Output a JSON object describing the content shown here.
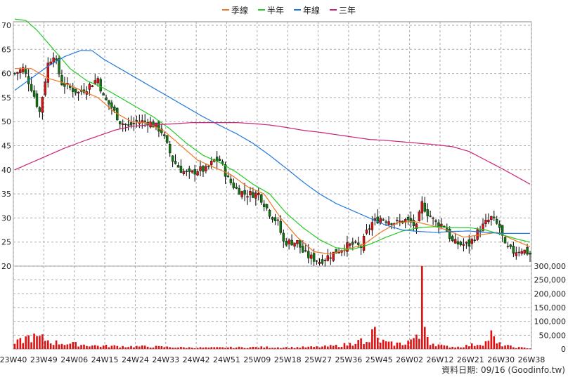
{
  "chart_data": {
    "type": "candlestick",
    "legend": {
      "placement": "top-center",
      "items": [
        {
          "name": "季線",
          "color": "#ee7722"
        },
        {
          "name": "半年",
          "color": "#22cc22"
        },
        {
          "name": "年線",
          "color": "#2277dd"
        },
        {
          "name": "三年",
          "color": "#cc2277"
        }
      ]
    },
    "colors": {
      "up": "#dd1111",
      "down": "#117711",
      "volume": "#dd1111",
      "grid": "#aaaaaa"
    },
    "price_axis": {
      "min": 20,
      "max": 70,
      "ticks": [
        20,
        25,
        30,
        35,
        40,
        45,
        50,
        55,
        60,
        65,
        70
      ]
    },
    "volume_axis": {
      "min": 0,
      "max": 300000,
      "ticks": [
        0,
        50000,
        100000,
        150000,
        200000,
        250000,
        300000
      ],
      "tick_labels": [
        "0",
        "50,000",
        "100,000",
        "150,000",
        "200,000",
        "250,000",
        "300,000"
      ]
    },
    "x_tick_labels": [
      "23W40",
      "23W49",
      "24W06",
      "24W15",
      "24W24",
      "24W33",
      "24W42",
      "24W51",
      "25W09",
      "25W18",
      "25W27",
      "25W36",
      "25W45",
      "26W02",
      "26W12",
      "26W21",
      "26W30",
      "26W38"
    ],
    "grid": true,
    "footer": "資料日期: 09/16  (Goodinfo.tw)",
    "close_keypoints": [
      [
        0,
        60
      ],
      [
        3,
        61
      ],
      [
        6,
        57
      ],
      [
        9,
        52
      ],
      [
        12,
        62
      ],
      [
        14,
        64
      ],
      [
        17,
        58
      ],
      [
        20,
        57
      ],
      [
        23,
        56
      ],
      [
        26,
        57
      ],
      [
        28,
        58
      ],
      [
        30,
        59
      ],
      [
        32,
        55
      ],
      [
        35,
        53
      ],
      [
        38,
        50
      ],
      [
        41,
        49
      ],
      [
        44,
        50
      ],
      [
        48,
        50
      ],
      [
        51,
        49
      ],
      [
        53,
        48
      ],
      [
        55,
        45
      ],
      [
        57,
        42
      ],
      [
        60,
        40
      ],
      [
        63,
        39
      ],
      [
        66,
        40
      ],
      [
        69,
        40
      ],
      [
        72,
        42
      ],
      [
        74,
        42
      ],
      [
        77,
        38
      ],
      [
        80,
        36
      ],
      [
        83,
        35
      ],
      [
        86,
        35
      ],
      [
        88,
        35
      ],
      [
        90,
        33
      ],
      [
        92,
        31
      ],
      [
        95,
        29
      ],
      [
        97,
        25
      ],
      [
        99,
        25
      ],
      [
        102,
        25
      ],
      [
        104,
        23
      ],
      [
        106,
        22
      ],
      [
        110,
        21
      ],
      [
        113,
        22
      ],
      [
        116,
        23
      ],
      [
        119,
        24
      ],
      [
        122,
        24.5
      ],
      [
        125,
        24
      ],
      [
        127,
        27
      ],
      [
        129,
        29
      ],
      [
        132,
        30
      ],
      [
        135,
        29.5
      ],
      [
        138,
        29
      ],
      [
        141,
        29.5
      ],
      [
        143,
        29
      ],
      [
        145,
        28
      ],
      [
        147,
        33
      ],
      [
        149,
        31
      ],
      [
        152,
        29
      ],
      [
        155,
        28.5
      ],
      [
        158,
        25
      ],
      [
        161,
        24.5
      ],
      [
        164,
        24.5
      ],
      [
        167,
        27
      ],
      [
        170,
        29
      ],
      [
        172,
        30
      ],
      [
        175,
        28
      ],
      [
        177,
        24
      ],
      [
        180,
        23
      ],
      [
        183,
        23.5
      ],
      [
        186,
        22.5
      ]
    ],
    "volume_keypoints": [
      [
        0,
        20000
      ],
      [
        5,
        45000
      ],
      [
        10,
        40000
      ],
      [
        14,
        25000
      ],
      [
        20,
        20000
      ],
      [
        30,
        12000
      ],
      [
        40,
        10000
      ],
      [
        50,
        9000
      ],
      [
        60,
        6000
      ],
      [
        70,
        5000
      ],
      [
        80,
        6000
      ],
      [
        90,
        7000
      ],
      [
        100,
        6000
      ],
      [
        110,
        8000
      ],
      [
        116,
        12000
      ],
      [
        122,
        20000
      ],
      [
        124,
        50000
      ],
      [
        126,
        15000
      ],
      [
        128,
        30000
      ],
      [
        130,
        80000
      ],
      [
        131,
        35000
      ],
      [
        135,
        20000
      ],
      [
        140,
        20000
      ],
      [
        144,
        40000
      ],
      [
        146,
        40000
      ],
      [
        147,
        300000
      ],
      [
        148,
        80000
      ],
      [
        150,
        25000
      ],
      [
        155,
        10000
      ],
      [
        160,
        8000
      ],
      [
        165,
        15000
      ],
      [
        170,
        25000
      ],
      [
        172,
        55000
      ],
      [
        174,
        20000
      ],
      [
        180,
        7000
      ],
      [
        186,
        3000
      ]
    ],
    "ma_keypoints": {
      "季線": [
        [
          0,
          61
        ],
        [
          6,
          61
        ],
        [
          12,
          59
        ],
        [
          18,
          58
        ],
        [
          24,
          56.5
        ],
        [
          30,
          55
        ],
        [
          36,
          52
        ],
        [
          42,
          50
        ],
        [
          48,
          49.7
        ],
        [
          54,
          48
        ],
        [
          60,
          45
        ],
        [
          66,
          42
        ],
        [
          72,
          40.5
        ],
        [
          78,
          39
        ],
        [
          84,
          36.5
        ],
        [
          90,
          35
        ],
        [
          96,
          30
        ],
        [
          102,
          26
        ],
        [
          108,
          23
        ],
        [
          114,
          22.5
        ],
        [
          120,
          23.5
        ],
        [
          126,
          24.5
        ],
        [
          132,
          27
        ],
        [
          138,
          29
        ],
        [
          144,
          29.3
        ],
        [
          150,
          28.5
        ],
        [
          156,
          27.5
        ],
        [
          162,
          26
        ],
        [
          168,
          26.5
        ],
        [
          174,
          27
        ],
        [
          180,
          25.5
        ],
        [
          186,
          24
        ]
      ],
      "半年": [
        [
          0,
          71.3
        ],
        [
          4,
          71
        ],
        [
          8,
          69
        ],
        [
          14,
          65
        ],
        [
          20,
          61
        ],
        [
          26,
          58.5
        ],
        [
          32,
          57
        ],
        [
          38,
          55
        ],
        [
          44,
          53
        ],
        [
          50,
          51
        ],
        [
          56,
          48.5
        ],
        [
          62,
          45.5
        ],
        [
          68,
          43
        ],
        [
          74,
          41.5
        ],
        [
          80,
          39.5
        ],
        [
          86,
          37
        ],
        [
          92,
          35
        ],
        [
          98,
          31
        ],
        [
          104,
          28
        ],
        [
          110,
          25.5
        ],
        [
          116,
          23.8
        ],
        [
          122,
          23.5
        ],
        [
          128,
          24.5
        ],
        [
          134,
          26
        ],
        [
          140,
          27.3
        ],
        [
          146,
          28
        ],
        [
          152,
          28.2
        ],
        [
          158,
          28
        ],
        [
          164,
          28
        ],
        [
          170,
          27.5
        ],
        [
          176,
          26.5
        ],
        [
          182,
          25.5
        ],
        [
          186,
          25
        ]
      ],
      "年線": [
        [
          0,
          56.5
        ],
        [
          6,
          59
        ],
        [
          12,
          61.5
        ],
        [
          18,
          63.5
        ],
        [
          24,
          64.8
        ],
        [
          28,
          64.7
        ],
        [
          32,
          63
        ],
        [
          38,
          61
        ],
        [
          44,
          59
        ],
        [
          50,
          57
        ],
        [
          56,
          55
        ],
        [
          62,
          53
        ],
        [
          68,
          51
        ],
        [
          74,
          49.2
        ],
        [
          80,
          47.5
        ],
        [
          86,
          45.5
        ],
        [
          92,
          43
        ],
        [
          98,
          40.3
        ],
        [
          104,
          37.5
        ],
        [
          110,
          35
        ],
        [
          116,
          33
        ],
        [
          122,
          31.5
        ],
        [
          128,
          30
        ],
        [
          134,
          28.5
        ],
        [
          140,
          27.5
        ],
        [
          146,
          27.2
        ],
        [
          152,
          27
        ],
        [
          158,
          27.2
        ],
        [
          164,
          27.3
        ],
        [
          170,
          27
        ],
        [
          176,
          26.8
        ],
        [
          186,
          26.8
        ]
      ],
      "三年": [
        [
          0,
          40
        ],
        [
          6,
          41.5
        ],
        [
          12,
          43
        ],
        [
          18,
          44.5
        ],
        [
          24,
          45.8
        ],
        [
          30,
          47
        ],
        [
          36,
          48.2
        ],
        [
          42,
          49
        ],
        [
          48,
          49.3
        ],
        [
          56,
          49.5
        ],
        [
          64,
          49.8
        ],
        [
          72,
          49.8
        ],
        [
          80,
          49.8
        ],
        [
          86,
          49.6
        ],
        [
          92,
          49.3
        ],
        [
          98,
          48.8
        ],
        [
          104,
          48.2
        ],
        [
          110,
          47.8
        ],
        [
          116,
          47.3
        ],
        [
          122,
          46.8
        ],
        [
          128,
          46.3
        ],
        [
          134,
          46.1
        ],
        [
          140,
          45.8
        ],
        [
          146,
          45.5
        ],
        [
          152,
          45.2
        ],
        [
          158,
          44.8
        ],
        [
          164,
          43.8
        ],
        [
          170,
          42
        ],
        [
          176,
          40.2
        ],
        [
          182,
          38.3
        ],
        [
          186,
          37
        ]
      ]
    }
  }
}
